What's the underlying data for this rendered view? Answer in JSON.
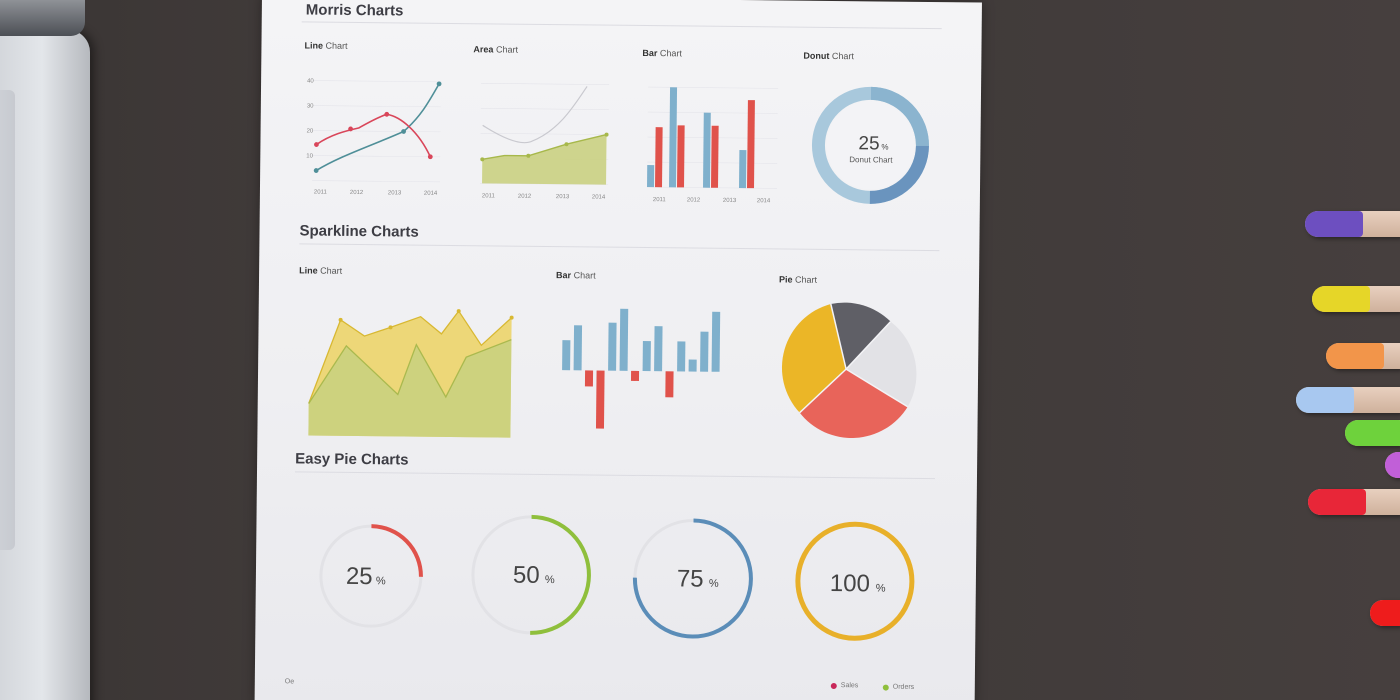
{
  "paper": {
    "section_morris": "Morris Charts",
    "section_sparkline": "Sparkline Charts",
    "section_easypie": "Easy Pie Charts",
    "morris": {
      "line": {
        "label_bold": "Line",
        "label_rest": "Chart"
      },
      "area": {
        "label_bold": "Area",
        "label_rest": "Chart"
      },
      "bar": {
        "label_bold": "Bar",
        "label_rest": "Chart"
      },
      "donut": {
        "label_bold": "Donut",
        "label_rest": "Chart",
        "center_value": "25",
        "center_unit": "%",
        "center_caption": "Donut Chart"
      }
    },
    "sparkline": {
      "line": {
        "label_bold": "Line",
        "label_rest": "Chart"
      },
      "bar": {
        "label_bold": "Bar",
        "label_rest": "Chart"
      },
      "pie": {
        "label_bold": "Pie",
        "label_rest": "Chart"
      }
    },
    "x_ticks": [
      "2011",
      "2012",
      "2013",
      "2014"
    ],
    "y_ticks": [
      "40",
      "30",
      "20",
      "10",
      "0"
    ],
    "easy_pies": [
      {
        "value": "25",
        "unit": "%",
        "fraction": 0.25,
        "color": "#e0524b"
      },
      {
        "value": "50",
        "unit": "%",
        "fraction": 0.5,
        "color": "#8fbf3c"
      },
      {
        "value": "75",
        "unit": "%",
        "fraction": 0.75,
        "color": "#5b8db8"
      },
      {
        "value": "100",
        "unit": "%",
        "fraction": 1.0,
        "color": "#e8b02a"
      }
    ],
    "legend": [
      {
        "label": "Sales",
        "color": "#c8285a"
      },
      {
        "label": "Orders",
        "color": "#8fbf3c"
      }
    ],
    "footer_mark": "Oe"
  },
  "colors": {
    "red": "#e0524b",
    "blue": "#7fb0cc",
    "yellow": "#e8c43a",
    "green": "#b8cc5a",
    "gray": "#dcdcdc",
    "dark": "#555555"
  },
  "markers": [
    {
      "color": "#6d4fc0"
    },
    {
      "color": "#e6d628"
    },
    {
      "color": "#f2954a"
    },
    {
      "color": "#a8c8f0"
    },
    {
      "color": "#6ed23c"
    },
    {
      "color": "#c15fd8"
    },
    {
      "color": "#e82638"
    },
    {
      "color": "#ee1c1c"
    }
  ]
}
